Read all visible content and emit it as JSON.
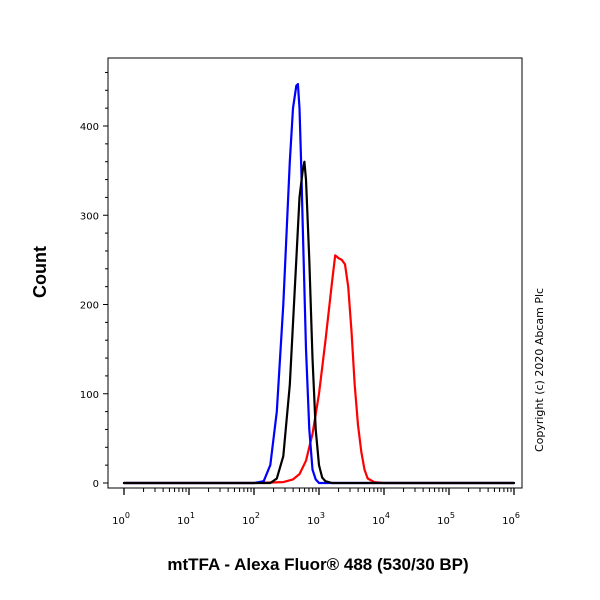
{
  "chart_data": {
    "type": "line",
    "title": "",
    "xlabel": "mtTFA - Alexa Fluor® 488 (530/30 BP)",
    "ylabel": "Count",
    "x_scale": "log",
    "xlim": [
      1,
      1000000
    ],
    "ylim": [
      0,
      500
    ],
    "x_ticks": [
      {
        "base": "10",
        "exp": "0"
      },
      {
        "base": "10",
        "exp": "1"
      },
      {
        "base": "10",
        "exp": "2"
      },
      {
        "base": "10",
        "exp": "3"
      },
      {
        "base": "10",
        "exp": "4"
      },
      {
        "base": "10",
        "exp": "5"
      },
      {
        "base": "10",
        "exp": "6"
      }
    ],
    "y_ticks": [
      "0",
      "100",
      "200",
      "300",
      "400"
    ],
    "grid": false,
    "copyright": "Copyright (c) 2020 Abcam Plc",
    "series": [
      {
        "color": "#0000ff",
        "x": [
          1,
          10,
          100,
          141,
          178,
          224,
          282,
          355,
          398,
          447,
          473,
          501,
          531,
          562,
          631,
          708,
          794,
          891,
          1000,
          1259,
          10000,
          1000000
        ],
        "values": [
          0,
          0,
          0,
          2,
          20,
          80,
          200,
          360,
          420,
          445,
          447,
          420,
          360,
          290,
          150,
          60,
          15,
          4,
          0,
          0,
          0,
          0
        ]
      },
      {
        "color": "#000000",
        "x": [
          1,
          10,
          100,
          178,
          224,
          282,
          355,
          447,
          501,
          562,
          596,
          631,
          708,
          794,
          891,
          1000,
          1122,
          1259,
          1585,
          10000,
          1000000
        ],
        "values": [
          0,
          0,
          0,
          0,
          5,
          30,
          110,
          250,
          320,
          350,
          360,
          340,
          250,
          140,
          60,
          20,
          6,
          2,
          0,
          0,
          0
        ]
      },
      {
        "color": "#ff0000",
        "x": [
          1,
          10,
          100,
          282,
          398,
          501,
          631,
          794,
          1000,
          1259,
          1585,
          1778,
          1995,
          2239,
          2512,
          2818,
          3162,
          3548,
          3981,
          4467,
          5012,
          5623,
          7079,
          10000,
          1000000
        ],
        "values": [
          0,
          0,
          0,
          1,
          4,
          10,
          25,
          55,
          100,
          160,
          225,
          255,
          252,
          250,
          245,
          220,
          170,
          110,
          65,
          35,
          15,
          5,
          1,
          0,
          0
        ]
      }
    ]
  }
}
